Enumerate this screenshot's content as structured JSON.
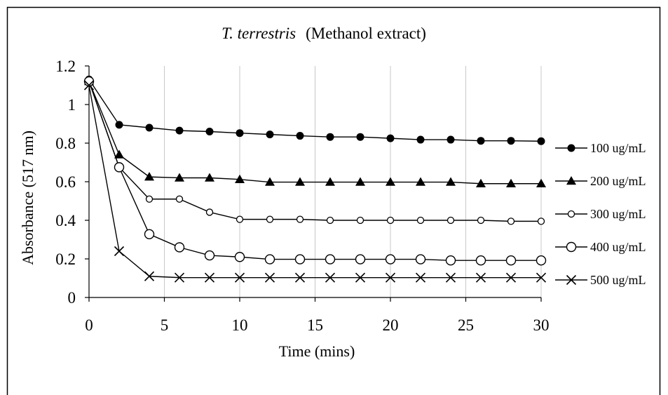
{
  "chart_data": {
    "type": "line",
    "title_italic": "T. terrestris",
    "title_rest": "(Methanol extract)",
    "xlabel": "Time (mins)",
    "ylabel": "Absorbance (517 nm)",
    "xlim": [
      0,
      30
    ],
    "ylim": [
      0,
      1.2
    ],
    "x_ticks": [
      0,
      5,
      10,
      15,
      20,
      25,
      30
    ],
    "y_ticks": [
      0,
      0.2,
      0.4,
      0.6,
      0.8,
      1,
      1.2
    ],
    "y_tick_labels": [
      "0",
      "0.2",
      "0.4",
      "0.6",
      "0.8",
      "1",
      "1.2"
    ],
    "grid": "vertical",
    "legend_position": "right",
    "x": [
      0,
      2,
      4,
      6,
      8,
      10,
      12,
      14,
      16,
      18,
      20,
      22,
      24,
      26,
      28,
      30
    ],
    "series": [
      {
        "name": "100 ug/mL",
        "marker": "filled-circle",
        "values": [
          1.13,
          0.895,
          0.88,
          0.865,
          0.86,
          0.852,
          0.845,
          0.838,
          0.832,
          0.832,
          0.825,
          0.818,
          0.818,
          0.812,
          0.812,
          0.81
        ]
      },
      {
        "name": "200 ug/mL",
        "marker": "filled-triangle",
        "values": [
          1.12,
          0.74,
          0.625,
          0.62,
          0.62,
          0.612,
          0.598,
          0.598,
          0.598,
          0.598,
          0.598,
          0.598,
          0.598,
          0.59,
          0.59,
          0.59
        ]
      },
      {
        "name": "300 ug/mL",
        "marker": "small-open-circle",
        "values": [
          1.12,
          0.675,
          0.51,
          0.51,
          0.442,
          0.405,
          0.405,
          0.405,
          0.4,
          0.4,
          0.4,
          0.4,
          0.4,
          0.4,
          0.395,
          0.395
        ]
      },
      {
        "name": "400 ug/mL",
        "marker": "large-open-circle",
        "values": [
          1.12,
          0.675,
          0.328,
          0.26,
          0.218,
          0.21,
          0.198,
          0.198,
          0.198,
          0.198,
          0.198,
          0.198,
          0.192,
          0.192,
          0.192,
          0.192
        ]
      },
      {
        "name": "500 ug/mL",
        "marker": "x",
        "values": [
          1.1,
          0.24,
          0.11,
          0.103,
          0.103,
          0.103,
          0.103,
          0.103,
          0.103,
          0.103,
          0.103,
          0.103,
          0.103,
          0.103,
          0.103,
          0.103
        ]
      }
    ]
  }
}
